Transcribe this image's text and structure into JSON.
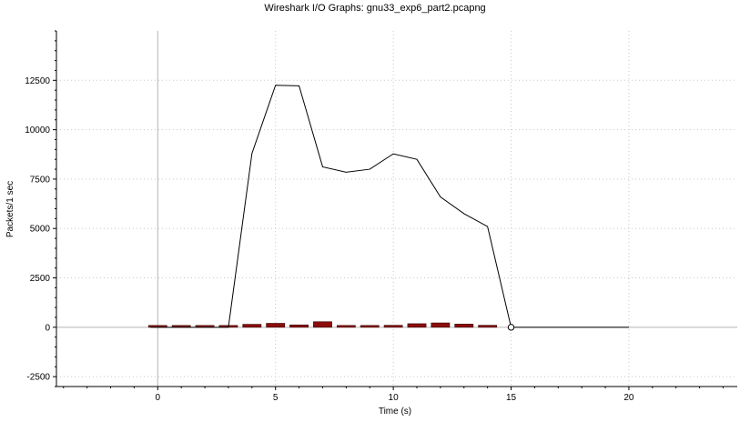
{
  "window": {
    "title": "Wireshark I/O Graphs: gnu33_exp6_part2.pcapng"
  },
  "chart_data": {
    "type": "line",
    "title": "Wireshark I/O Graphs: gnu33_exp6_part2.pcapng",
    "xlabel": "Time (s)",
    "ylabel": "Packets/1 sec",
    "xlim": [
      -4.3,
      24.6
    ],
    "ylim": [
      -3000,
      15000
    ],
    "x_ticks": [
      0,
      5,
      10,
      15,
      20
    ],
    "y_ticks": [
      -2500,
      0,
      2500,
      5000,
      7500,
      10000,
      12500
    ],
    "x_tick_labels": [
      "0",
      "5",
      "10",
      "15",
      "20"
    ],
    "y_tick_labels": [
      "-2500",
      "0",
      "2500",
      "5000",
      "7500",
      "10000",
      "12500"
    ],
    "grid": true,
    "legend": "none",
    "series": [
      {
        "kind": "line",
        "color": "#000000",
        "x": [
          -0.3,
          3,
          4,
          5,
          6,
          7,
          8,
          9,
          10,
          11,
          12,
          13,
          14,
          15,
          20
        ],
        "values": [
          0,
          0,
          8800,
          12250,
          12220,
          8120,
          7850,
          8000,
          8780,
          8500,
          6600,
          5750,
          5100,
          0,
          0
        ]
      },
      {
        "kind": "bar",
        "color": "#8b0d0d",
        "x": [
          0,
          1,
          2,
          3,
          4,
          5,
          6,
          7,
          8,
          9,
          10,
          11,
          12,
          13,
          14
        ],
        "values": [
          0,
          0,
          0,
          0,
          150,
          200,
          120,
          280,
          80,
          80,
          100,
          180,
          220,
          160,
          100
        ]
      }
    ],
    "marker": {
      "x": 15,
      "y": 0,
      "color": "#000000"
    }
  }
}
